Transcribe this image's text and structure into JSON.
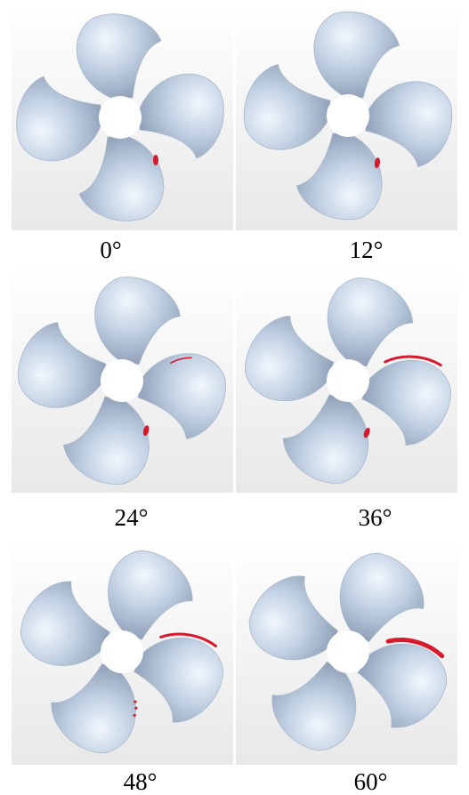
{
  "panels": [
    {
      "angle_label": "0°",
      "cavitation": "small patch at root of lower blade"
    },
    {
      "angle_label": "12°",
      "cavitation": "small patch at root of lower blade"
    },
    {
      "angle_label": "24°",
      "cavitation": "patch on lower-left blade root and trace on right blade"
    },
    {
      "angle_label": "36°",
      "cavitation": "patch on lower-left blade and arc on lower-right blade"
    },
    {
      "angle_label": "48°",
      "cavitation": "dots on lower-left blade and arc on lower-right blade"
    },
    {
      "angle_label": "60°",
      "cavitation": "larger arc on lower-right blade"
    }
  ],
  "colors": {
    "blade": "#c3d2e4",
    "blade_shadow": "#8a9bb4",
    "cavitation": "#d7192e",
    "background_top": "#ffffff",
    "background_bottom": "#e8e8e8"
  }
}
